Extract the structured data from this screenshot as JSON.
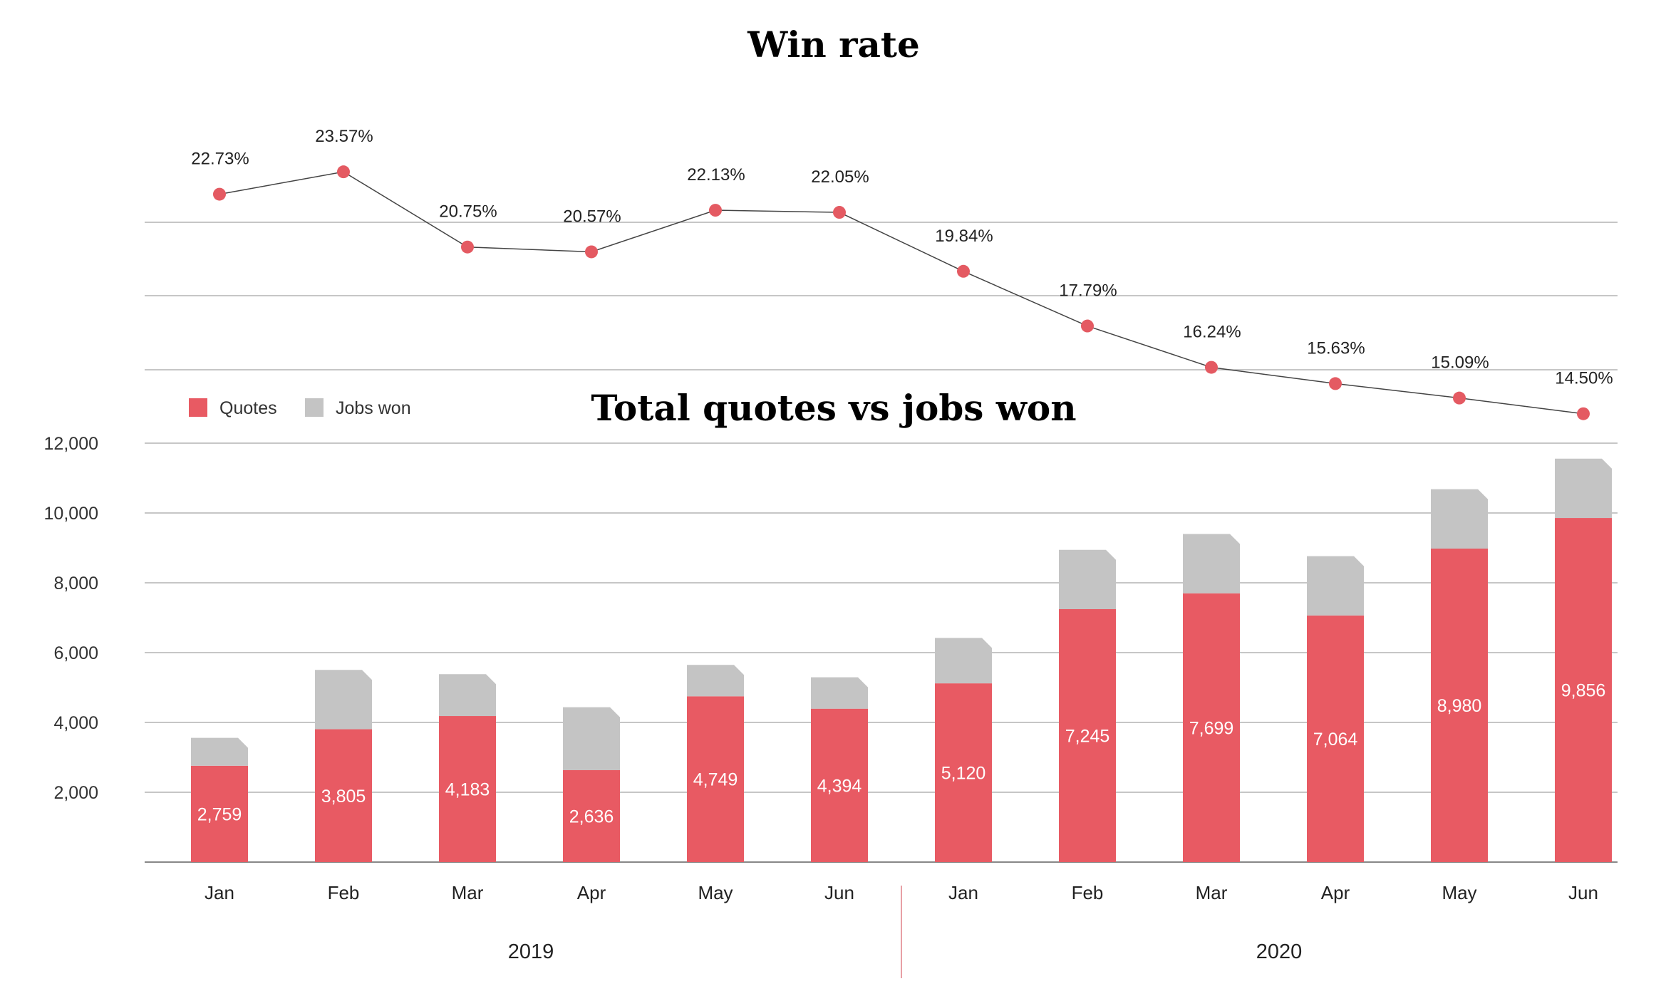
{
  "chart_data": [
    {
      "type": "line",
      "title": "Win rate",
      "categories": [
        "Jan",
        "Feb",
        "Mar",
        "Apr",
        "May",
        "Jun",
        "Jan",
        "Feb",
        "Mar",
        "Apr",
        "May",
        "Jun"
      ],
      "values": [
        22.73,
        23.57,
        20.75,
        20.57,
        22.13,
        22.05,
        19.84,
        17.79,
        16.24,
        15.63,
        15.09,
        14.5
      ],
      "value_labels": [
        "22.73%",
        "23.57%",
        "20.75%",
        "20.57%",
        "22.13%",
        "22.05%",
        "19.84%",
        "17.79%",
        "16.24%",
        "15.63%",
        "15.09%",
        "14.50%"
      ],
      "grid": true,
      "colors": {
        "marker": "#e45a62",
        "line": "#444444"
      }
    },
    {
      "type": "bar",
      "stacked": true,
      "title": "Total quotes vs jobs won",
      "categories": [
        "Jan",
        "Feb",
        "Mar",
        "Apr",
        "May",
        "Jun",
        "Jan",
        "Feb",
        "Mar",
        "Apr",
        "May",
        "Jun"
      ],
      "groups": [
        {
          "label": "2019",
          "categories": [
            "Jan",
            "Feb",
            "Mar",
            "Apr",
            "May",
            "Jun"
          ]
        },
        {
          "label": "2020",
          "categories": [
            "Jan",
            "Feb",
            "Mar",
            "Apr",
            "May",
            "Jun"
          ]
        }
      ],
      "series": [
        {
          "name": "Quotes",
          "color": "#e85a63",
          "values": [
            2759,
            3805,
            4183,
            2636,
            4749,
            4394,
            5120,
            7245,
            7699,
            7064,
            8980,
            9856
          ],
          "labels": [
            "2,759",
            "3,805",
            "4,183",
            "2,636",
            "4,749",
            "4,394",
            "5,120",
            "7,245",
            "7,699",
            "7,064",
            "8,980",
            "9,856"
          ]
        },
        {
          "name": "Jobs won",
          "color": "#c4c4c4",
          "values": [
            800,
            1700,
            1200,
            1800,
            900,
            900,
            1300,
            1700,
            1700,
            1700,
            1700,
            1700
          ]
        }
      ],
      "yticks": [
        "2,000",
        "4,000",
        "6,000",
        "8,000",
        "10,000",
        "12,000"
      ],
      "ylim": [
        0,
        12000
      ],
      "legend": "top-left",
      "grid": true
    }
  ]
}
